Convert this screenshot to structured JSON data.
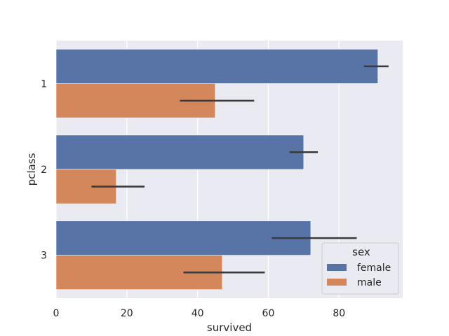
{
  "chart_data": {
    "type": "bar",
    "orientation": "horizontal",
    "title": "",
    "xlabel": "survived",
    "ylabel": "pclass",
    "categories": [
      "1",
      "2",
      "3"
    ],
    "xlim": [
      0,
      98
    ],
    "xticks": [
      0,
      20,
      40,
      60,
      80
    ],
    "grid": true,
    "legend": {
      "title": "sex",
      "placement": "lower-right"
    },
    "series": [
      {
        "name": "female",
        "color": "#5874a6",
        "values": [
          91,
          70,
          72
        ],
        "ci": [
          [
            87,
            94
          ],
          [
            66,
            74
          ],
          [
            61,
            85
          ]
        ]
      },
      {
        "name": "male",
        "color": "#d5875c",
        "values": [
          45,
          17,
          47
        ],
        "ci": [
          [
            35,
            56
          ],
          [
            10,
            25
          ],
          [
            36,
            59
          ]
        ]
      }
    ],
    "colors": {
      "background": "#eaeaf2",
      "grid": "#ffffff",
      "errorbar": "#3b3b3b"
    }
  }
}
